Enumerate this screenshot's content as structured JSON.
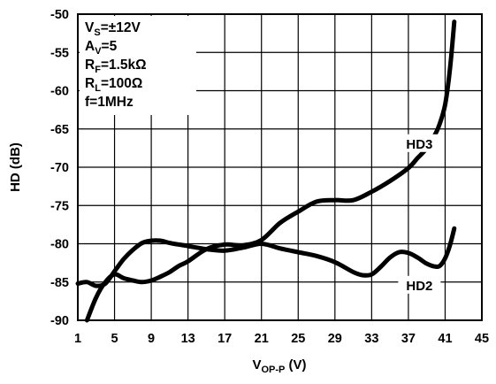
{
  "chart_data": {
    "type": "line",
    "xlabel": {
      "main": "V",
      "sub": "OP-P",
      "unit": " (V)"
    },
    "ylabel": "HD (dB)",
    "xlim": [
      1,
      45
    ],
    "ylim": [
      -90,
      -50
    ],
    "x_ticks": [
      1,
      5,
      9,
      13,
      17,
      21,
      25,
      29,
      33,
      37,
      41,
      45
    ],
    "y_ticks": [
      -50,
      -55,
      -60,
      -65,
      -70,
      -75,
      -80,
      -85,
      -90
    ],
    "grid": true,
    "conditions": [
      {
        "main": "V",
        "sub": "S",
        "rest": "=±12V"
      },
      {
        "main": "A",
        "sub": "V",
        "rest": "=5"
      },
      {
        "main": "R",
        "sub": "F",
        "rest": "=1.5kΩ"
      },
      {
        "main": "R",
        "sub": "L",
        "rest": "=100Ω"
      },
      {
        "main": "f=1MHz",
        "sub": "",
        "rest": ""
      }
    ],
    "series": [
      {
        "name": "HD3",
        "x": [
          2,
          3,
          4,
          5,
          6,
          7,
          8,
          9,
          10,
          11,
          12,
          13,
          15,
          17,
          19,
          21,
          23,
          25,
          27,
          29,
          31,
          33,
          35,
          37,
          38,
          39,
          40,
          40.5,
          41,
          41.5,
          42
        ],
        "y": [
          -90,
          -87,
          -85,
          -84,
          -84.5,
          -84.8,
          -85,
          -84.8,
          -84.3,
          -83.7,
          -82.9,
          -82.3,
          -80.7,
          -80.1,
          -80.2,
          -79.5,
          -77.3,
          -75.8,
          -74.5,
          -74.3,
          -74.3,
          -73.2,
          -71.8,
          -70.1,
          -68.8,
          -67.5,
          -65.5,
          -64.0,
          -61.8,
          -57.5,
          -51
        ]
      },
      {
        "name": "HD2",
        "x": [
          1,
          2,
          3,
          4,
          5,
          6,
          7,
          8,
          9,
          10,
          11,
          12,
          13,
          15,
          17,
          19,
          21,
          23,
          25,
          27,
          29,
          31,
          32,
          33,
          34,
          35,
          36,
          37,
          38,
          39,
          40,
          40.5,
          41,
          41.5,
          42
        ],
        "y": [
          -85.2,
          -85.0,
          -85.5,
          -85.2,
          -83.6,
          -82.0,
          -80.8,
          -79.9,
          -79.6,
          -79.6,
          -79.9,
          -80.1,
          -80.3,
          -80.7,
          -80.9,
          -80.5,
          -80.0,
          -80.6,
          -81.1,
          -81.6,
          -82.4,
          -83.7,
          -84.1,
          -84.0,
          -83.0,
          -81.8,
          -81.1,
          -81.2,
          -81.8,
          -82.6,
          -83.0,
          -82.8,
          -81.9,
          -80.3,
          -78.0
        ]
      }
    ]
  }
}
